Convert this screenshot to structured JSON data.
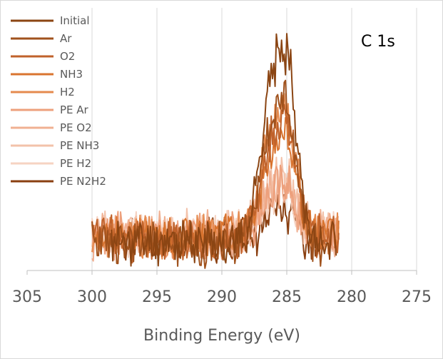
{
  "chart_data": {
    "type": "line",
    "title": "",
    "annotation": "C 1s",
    "xlabel": "Binding Energy (eV)",
    "ylabel": "",
    "x_reversed": true,
    "xlim": [
      305,
      275
    ],
    "xticks": [
      "305",
      "300",
      "295",
      "290",
      "285",
      "280",
      "275"
    ],
    "grid": "vertical",
    "legend_position": "top-left",
    "series": [
      {
        "name": "Initial",
        "color": "#8b4513",
        "x_start": 298.5,
        "x_end": 281.2,
        "baseline": 0.22,
        "peak": 2.1,
        "seed": 11
      },
      {
        "name": "Ar",
        "color": "#a0521d",
        "x_start": 300.0,
        "x_end": 282.2,
        "baseline": 0.2,
        "peak": 1.55,
        "seed": 23
      },
      {
        "name": "O2",
        "color": "#c0622b",
        "x_start": 300.0,
        "x_end": 281.0,
        "baseline": 0.26,
        "peak": 1.3,
        "seed": 37
      },
      {
        "name": "NH3",
        "color": "#d9742f",
        "x_start": 300.0,
        "x_end": 281.0,
        "baseline": 0.27,
        "peak": 1.1,
        "seed": 41
      },
      {
        "name": "H2",
        "color": "#e58a4e",
        "x_start": 300.0,
        "x_end": 281.0,
        "baseline": 0.27,
        "peak": 1.35,
        "seed": 53
      },
      {
        "name": "PE Ar",
        "color": "#eda07c",
        "x_start": 300.0,
        "x_end": 281.0,
        "baseline": 0.3,
        "peak": 0.55,
        "seed": 67
      },
      {
        "name": "PE O2",
        "color": "#f0b092",
        "x_start": 300.0,
        "x_end": 281.0,
        "baseline": 0.3,
        "peak": 0.55,
        "seed": 71
      },
      {
        "name": "PE NH3",
        "color": "#f3c2aa",
        "x_start": 300.0,
        "x_end": 281.0,
        "baseline": 0.32,
        "peak": 0.6,
        "seed": 83
      },
      {
        "name": "PE H2",
        "color": "#f6d3c2",
        "x_start": 300.0,
        "x_end": 281.0,
        "baseline": 0.32,
        "peak": 0.45,
        "seed": 97
      },
      {
        "name": "PE N2H2",
        "color": "#8a3f10",
        "x_start": 298.5,
        "x_end": 281.2,
        "baseline": 0.25,
        "peak": 0.3,
        "seed": 101
      }
    ]
  }
}
